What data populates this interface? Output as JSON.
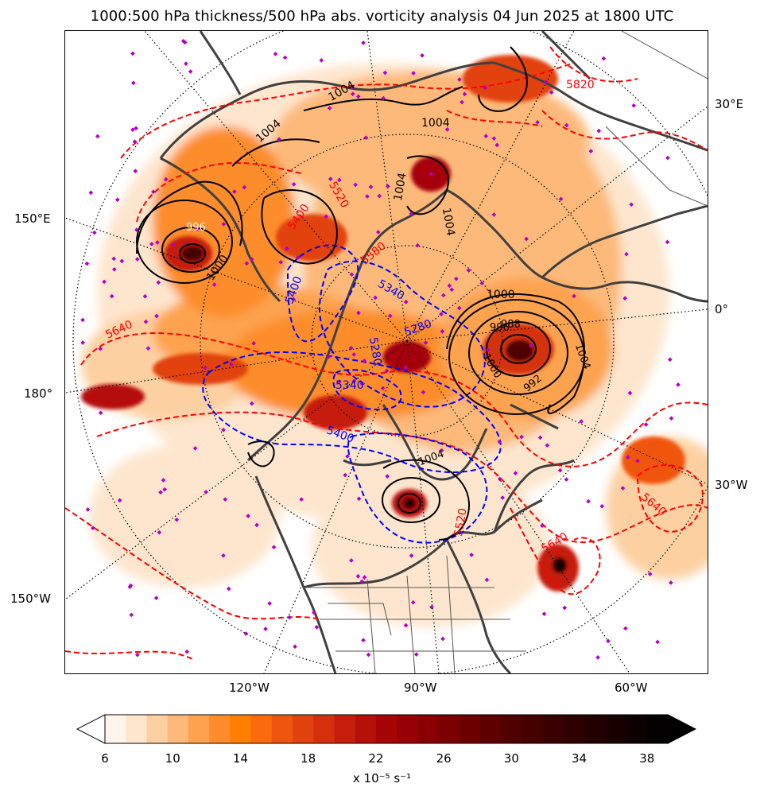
{
  "title": "1000:500 hPa thickness/500 hPa abs. vorticity analysis 04 Jun 2025 at 1800 UTC",
  "map": {
    "projection": "north polar stereographic",
    "fields": {
      "shading": "500 hPa absolute vorticity",
      "red_dashed_contours": "1000:500 hPa thickness (warm)",
      "blue_dashed_contours": "1000:500 hPa thickness (cold)",
      "black_solid_contours": "mean sea level pressure",
      "magenta_markers": "station points"
    },
    "colors": {
      "vorticity_low": "#fff5eb",
      "vorticity_mid": "#ff7f00",
      "vorticity_high": "#8b0000",
      "vorticity_max": "#000000",
      "thickness_warm": "#ff0000",
      "thickness_cold": "#0000ff",
      "pressure": "#000000",
      "coastline": "#404040",
      "stations": "#b400c8"
    },
    "longitude_labels": {
      "left": [
        "150°E",
        "180°",
        "150°W"
      ],
      "right": [
        "30°E",
        "0°",
        "30°W"
      ],
      "bottom": [
        "120°W",
        "90°W",
        "60°W"
      ]
    },
    "contour_labels": {
      "red": [
        "5820",
        "5640",
        "5640",
        "5640",
        "5400",
        "5580",
        "5520",
        "5520"
      ],
      "blue": [
        "5400",
        "5340",
        "5280",
        "5340",
        "5280",
        "5400"
      ],
      "black": [
        "1004",
        "1004",
        "1004",
        "1004",
        "1004",
        "1000",
        "996",
        "1000",
        "996",
        "992",
        "988",
        "1004",
        "1000",
        "1004"
      ]
    }
  },
  "colorbar": {
    "ticks": [
      "6",
      "10",
      "14",
      "18",
      "22",
      "26",
      "30",
      "34",
      "38"
    ],
    "label": "x 10⁻⁵ s⁻¹",
    "extend": "both",
    "colors": [
      "#fff5eb",
      "#fee6ce",
      "#fdd0a2",
      "#fdb97a",
      "#fda350",
      "#fd8d2c",
      "#ff7f00",
      "#fb6a0c",
      "#f05510",
      "#e2420f",
      "#d4300e",
      "#c51f0c",
      "#b5100a",
      "#a60508",
      "#970005",
      "#880003",
      "#7a0002",
      "#6c0001",
      "#5e0000",
      "#510000",
      "#450000",
      "#390000",
      "#2e0000",
      "#230000",
      "#180000",
      "#0d0000",
      "#050000"
    ]
  }
}
